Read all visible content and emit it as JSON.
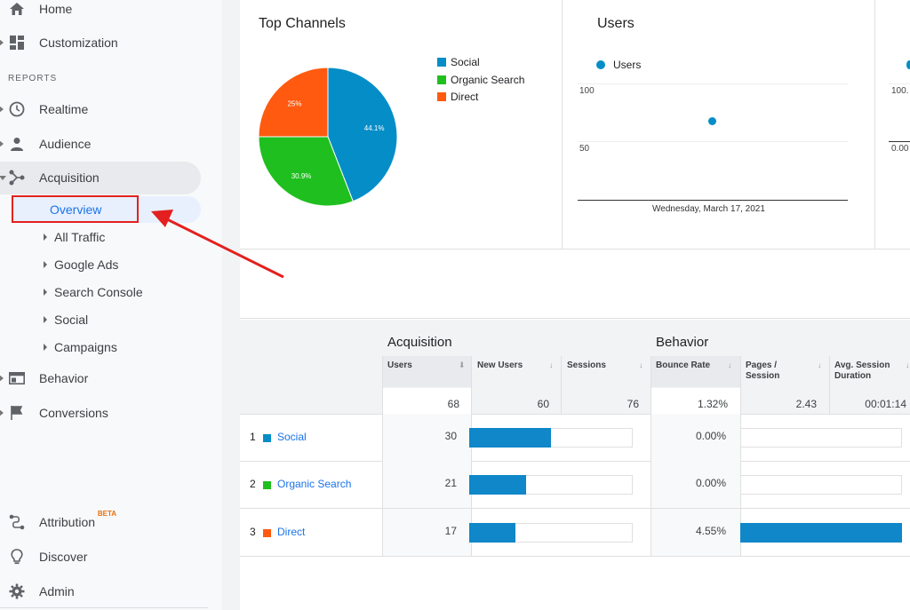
{
  "sidebar": {
    "home": "Home",
    "customization": "Customization",
    "section_reports": "REPORTS",
    "realtime": "Realtime",
    "audience": "Audience",
    "acquisition": "Acquisition",
    "overview": "Overview",
    "sub_items": [
      "All Traffic",
      "Google Ads",
      "Search Console",
      "Social",
      "Campaigns"
    ],
    "behavior": "Behavior",
    "conversions": "Conversions",
    "attribution": "Attribution",
    "attribution_badge": "BETA",
    "discover": "Discover",
    "admin": "Admin"
  },
  "top_channels": {
    "title": "Top Channels",
    "legend": [
      "Social",
      "Organic Search",
      "Direct"
    ],
    "colors": [
      "#058dc7",
      "#1fbf1f",
      "#ff5a0f"
    ],
    "slice_labels": [
      "44.1%",
      "30.9%",
      "25%"
    ]
  },
  "users_card": {
    "title": "Users",
    "legend": "Users",
    "y_ticks": [
      "100",
      "50"
    ],
    "x_label": "Wednesday, March 17, 2021"
  },
  "partial_card": {
    "y_ticks": [
      "100.",
      "0.00"
    ]
  },
  "chart_data": {
    "type": "pie",
    "title": "Top Channels",
    "categories": [
      "Social",
      "Organic Search",
      "Direct"
    ],
    "values": [
      44.1,
      30.9,
      25.0
    ],
    "colors": [
      "#058dc7",
      "#1fbf1f",
      "#ff5a0f"
    ],
    "legend": "right"
  },
  "table": {
    "group_acquisition": "Acquisition",
    "group_behavior": "Behavior",
    "columns": [
      "Users",
      "New Users",
      "Sessions",
      "Bounce Rate",
      "Pages / Session",
      "Avg. Session Duration"
    ],
    "totals": [
      "68",
      "60",
      "76",
      "1.32%",
      "2.43",
      "00:01:14"
    ],
    "rows": [
      {
        "index": "1",
        "channel": "Social",
        "color": "#058dc7",
        "users": "30",
        "bounce": "0.00%",
        "new_users_bar": 0.5,
        "pages_bar": 0.0
      },
      {
        "index": "2",
        "channel": "Organic Search",
        "color": "#1fbf1f",
        "users": "21",
        "bounce": "0.00%",
        "new_users_bar": 0.35,
        "pages_bar": 0.0
      },
      {
        "index": "3",
        "channel": "Direct",
        "color": "#ff5a0f",
        "users": "17",
        "bounce": "4.55%",
        "new_users_bar": 0.28,
        "pages_bar": 1.0
      }
    ]
  }
}
